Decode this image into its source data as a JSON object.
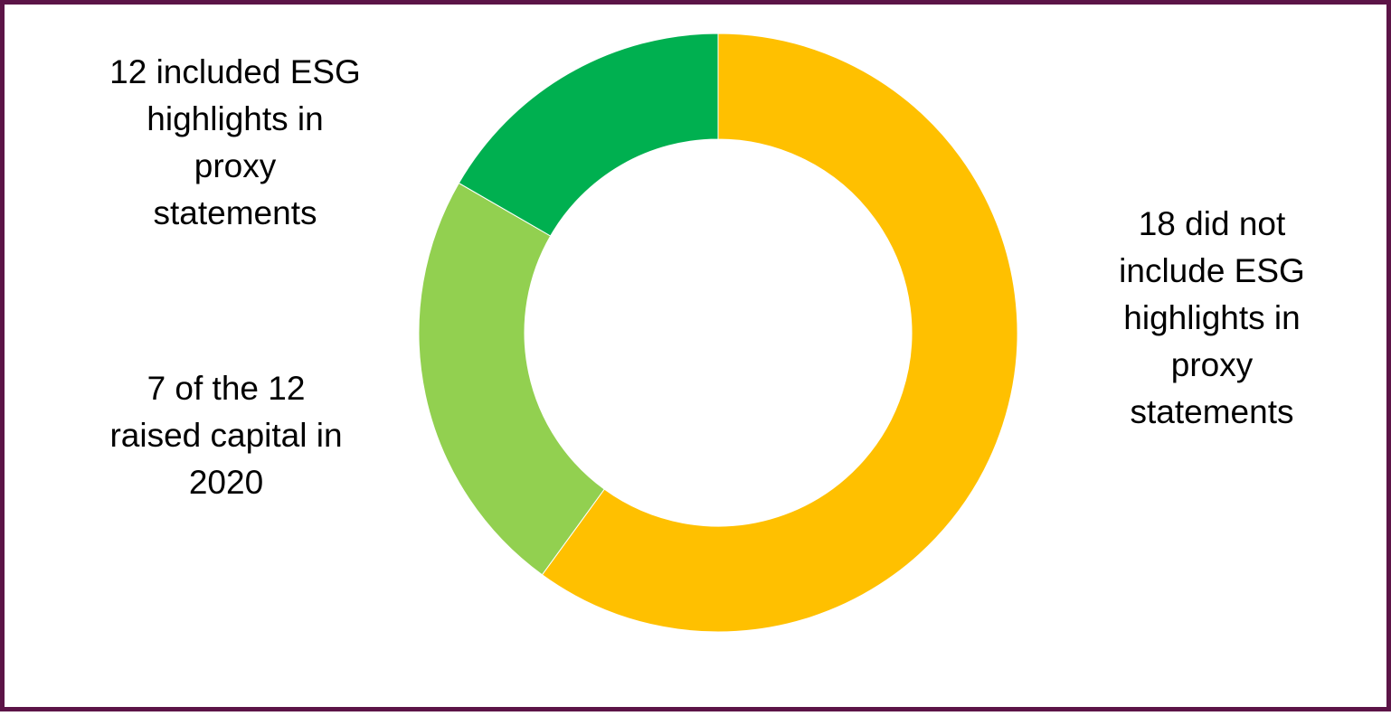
{
  "chart_data": {
    "type": "pie",
    "donut": true,
    "title": "",
    "slices": [
      {
        "label": "18 did not include ESG highlights in proxy statements",
        "value": 18,
        "color": "#FFC000"
      },
      {
        "label": "7 of the 12 raised capital in 2020",
        "value": 7,
        "color": "#92D050"
      },
      {
        "label": "12 included ESG highlights in proxy statements",
        "value": 5,
        "color": "#00B050"
      }
    ],
    "legend": "none"
  },
  "labels": {
    "slice_0": "18 did not\ninclude ESG\nhighlights in\nproxy\nstatements",
    "slice_1": "7 of the 12\nraised capital in\n2020",
    "slice_2": "12 included ESG\nhighlights in\nproxy\nstatements"
  },
  "colors": {
    "border": "#5c1447",
    "background": "#ffffff"
  }
}
